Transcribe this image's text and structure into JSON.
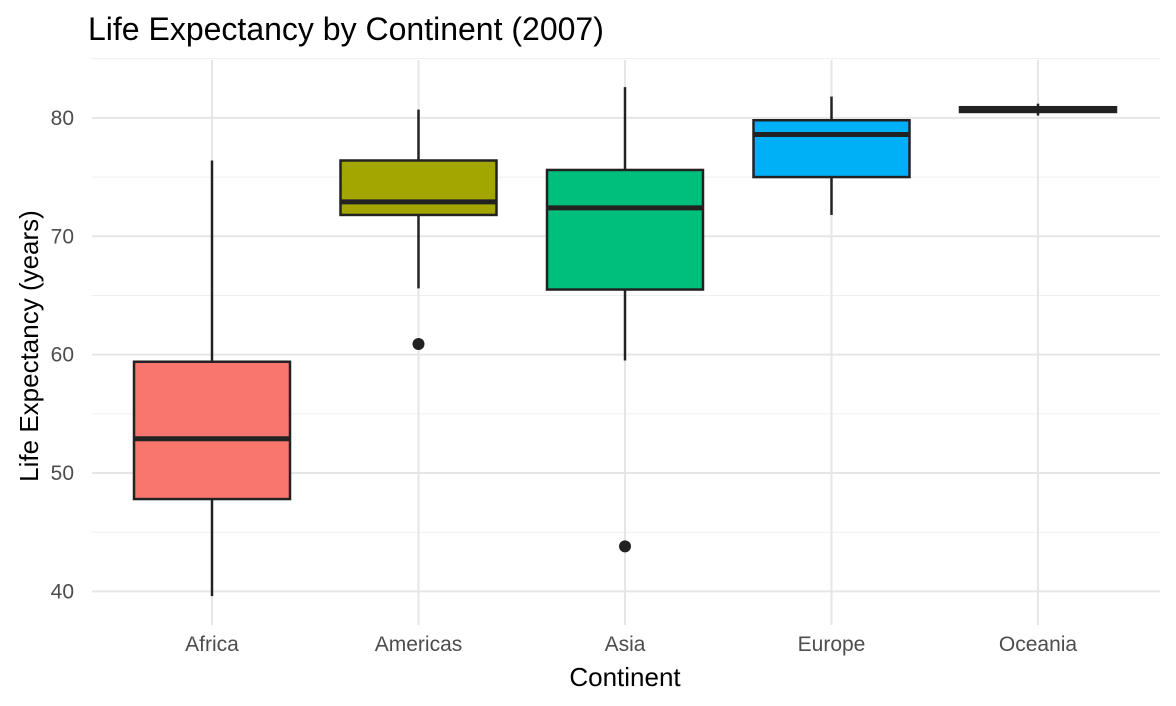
{
  "chart_data": {
    "type": "boxplot",
    "title": "Life Expectancy by Continent (2007)",
    "xlabel": "Continent",
    "ylabel": "Life Expectancy (years)",
    "categories": [
      "Africa",
      "Americas",
      "Asia",
      "Europe",
      "Oceania"
    ],
    "ylim": [
      38,
      85
    ],
    "yticks": [
      40,
      50,
      60,
      70,
      80
    ],
    "grid": true,
    "legend": "none",
    "series": [
      {
        "category": "Africa",
        "min": 39.6,
        "q1": 47.8,
        "median": 52.9,
        "q3": 59.4,
        "max": 76.4,
        "outliers": [],
        "color": "#F8766D"
      },
      {
        "category": "Americas",
        "min": 65.6,
        "q1": 71.8,
        "median": 72.9,
        "q3": 76.4,
        "max": 80.7,
        "outliers": [
          60.9
        ],
        "color": "#A3A500"
      },
      {
        "category": "Asia",
        "min": 59.5,
        "q1": 65.5,
        "median": 72.4,
        "q3": 75.6,
        "max": 82.6,
        "outliers": [
          43.8
        ],
        "color": "#00BF7D"
      },
      {
        "category": "Europe",
        "min": 71.8,
        "q1": 75.0,
        "median": 78.6,
        "q3": 79.8,
        "max": 81.8,
        "outliers": [],
        "color": "#00B0F6"
      },
      {
        "category": "Oceania",
        "min": 80.2,
        "q1": 80.5,
        "median": 80.7,
        "q3": 80.9,
        "max": 81.2,
        "outliers": [],
        "color": "#E76BF3"
      }
    ]
  }
}
